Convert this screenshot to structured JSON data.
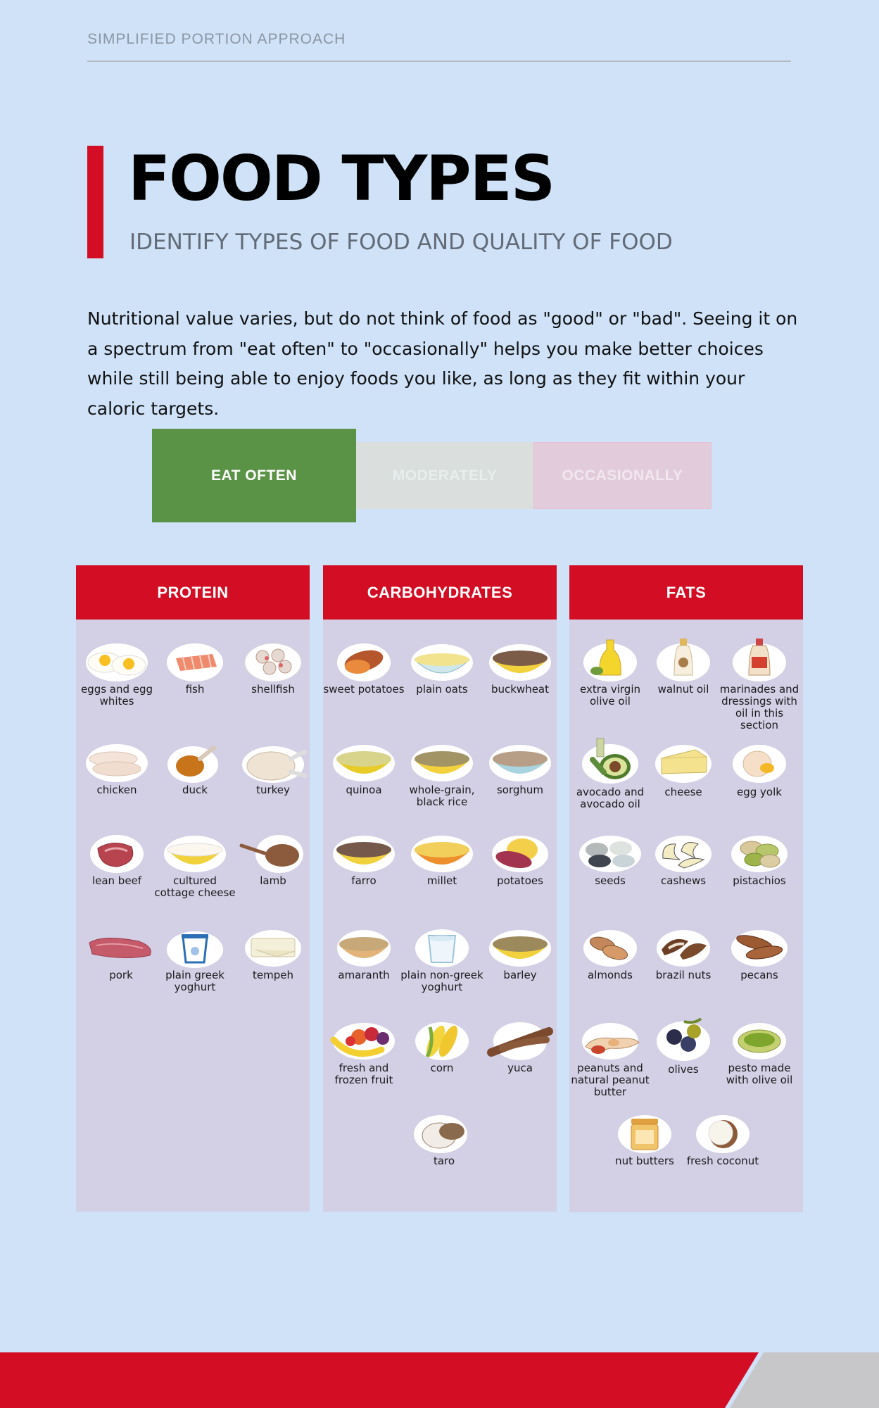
{
  "header": {
    "eyebrow": "SIMPLIFIED PORTION APPROACH",
    "title": "FOOD TYPES",
    "subtitle": "IDENTIFY TYPES OF FOOD AND QUALITY OF FOOD"
  },
  "intro": "Nutritional value varies, but do not think of food as \"good\" or \"bad\". Seeing it on a spectrum from \"eat often\" to \"occasionally\" helps you make better choices while still being able to enjoy foods you like, as long as they fit within your caloric targets.",
  "legend": {
    "eat_often": "EAT OFTEN",
    "moderately": "MODERATELY",
    "occasionally": "OCCASIONALLY",
    "selected": "EAT OFTEN",
    "colors": {
      "eat_often": "#5a9246",
      "moderately": "#dadedc",
      "occasionally": "#e2ccdc"
    }
  },
  "columns": {
    "protein": {
      "title": "PROTEIN",
      "items": [
        "eggs and egg whites",
        "fish",
        "shellfish",
        "chicken",
        "duck",
        "turkey",
        "lean beef",
        "cultured cottage cheese",
        "lamb",
        "pork",
        "plain greek yoghurt",
        "tempeh"
      ]
    },
    "carbs": {
      "title": "CARBOHYDRATES",
      "items": [
        "sweet potatoes",
        "plain oats",
        "buckwheat",
        "quinoa",
        "whole-grain, black rice",
        "sorghum",
        "farro",
        "millet",
        "potatoes",
        "amaranth",
        "plain non-greek yoghurt",
        "barley",
        "fresh and frozen fruit",
        "corn",
        "yuca",
        "taro"
      ]
    },
    "fats": {
      "title": "FATS",
      "items": [
        "extra virgin olive oil",
        "walnut oil",
        "marinades and dressings with oil in this section",
        "avocado and avocado oil",
        "cheese",
        "egg yolk",
        "seeds",
        "cashews",
        "pistachios",
        "almonds",
        "brazil nuts",
        "pecans",
        "peanuts and natural peanut butter",
        "olives",
        "pesto made with olive oil",
        "nut butters",
        "fresh coconut"
      ]
    }
  },
  "colors": {
    "accent": "#d30e24",
    "background": "#cfe2f8",
    "panel": "#d3cfe5"
  }
}
